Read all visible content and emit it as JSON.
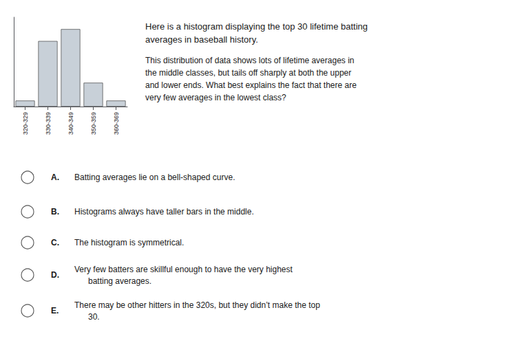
{
  "chart_data": {
    "type": "bar",
    "title": "Here is a histogram displaying the top 30 lifetime batting\naverages in baseball history.",
    "subtitle": "This distribution of data shows lots of lifetime averages in\nthe middle classes, but tails off sharply at both the upper\nand lower ends. What best explains the fact that there are\nvery few averages in the lowest class?",
    "categories": [
      "320-329",
      "330-339",
      "340-349",
      "350-359",
      "360-369"
    ],
    "values": [
      1,
      11,
      13,
      4,
      1
    ],
    "color": "#c8d0d8",
    "ylim": [
      0,
      15
    ],
    "grid": false,
    "tick_labels": "x",
    "annotations": [
      {
        "label": "A.",
        "text": "Batting averages lie on a bell-shaped curve."
      },
      {
        "label": "B.",
        "text": "Histograms always have taller bars in the middle."
      },
      {
        "label": "C.",
        "text": "The histogram is symmetrical."
      },
      {
        "label": "D.",
        "text": "Very few batters are skillful enough to have the very highest\n      batting averages."
      },
      {
        "label": "E.",
        "text": "There may be other hitters in the 320s, but they didn’t make the top\n      30."
      }
    ]
  }
}
